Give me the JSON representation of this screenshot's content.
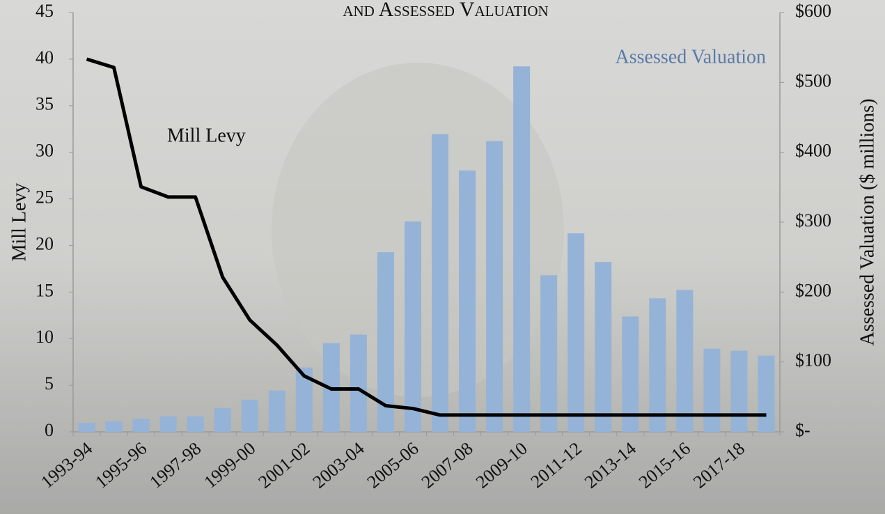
{
  "chart_data": {
    "type": "bar_line",
    "title": "and Assessed Valuation",
    "categories": [
      "1993-94",
      null,
      "1995-96",
      null,
      "1997-98",
      null,
      "1999-00",
      null,
      "2001-02",
      null,
      "2003-04",
      null,
      "2005-06",
      null,
      "2007-08",
      null,
      "2009-10",
      null,
      "2011-12",
      null,
      "2013-14",
      null,
      "2015-16",
      null,
      "2017-18",
      null
    ],
    "series": [
      {
        "name": "Assessed Valuation",
        "type": "bar",
        "axis": "y2",
        "color": "#95b3d7",
        "values": [
          13,
          15,
          19,
          22,
          22,
          34,
          46,
          59,
          92,
          127,
          139,
          257,
          301,
          426,
          374,
          416,
          523,
          224,
          284,
          243,
          165,
          191,
          203,
          119,
          116,
          109
        ]
      },
      {
        "name": "Mill Levy",
        "type": "line",
        "color": "#000000",
        "values": [
          40,
          39.1,
          26.3,
          25.2,
          25.2,
          16.6,
          12,
          9.3,
          6,
          4.6,
          4.6,
          2.8,
          2.5,
          1.8,
          1.8,
          1.8,
          1.8,
          1.8,
          1.8,
          1.8,
          1.8,
          1.8,
          1.8,
          1.8,
          1.8,
          1.8
        ]
      }
    ],
    "y_label": "Mill Levy",
    "y2_label": "Assessed Valuation ($ millions)",
    "ylim": [
      0,
      45
    ],
    "yticks": [
      0,
      5,
      10,
      15,
      20,
      25,
      30,
      35,
      40,
      45
    ],
    "y2lim": [
      0,
      600
    ],
    "y2ticks": [
      {
        "value": 0,
        "label": "$-"
      },
      {
        "value": 100,
        "label": "$100"
      },
      {
        "value": 200,
        "label": "$200"
      },
      {
        "value": 300,
        "label": "$300"
      },
      {
        "value": 400,
        "label": "$400"
      },
      {
        "value": 500,
        "label": "$500"
      },
      {
        "value": 600,
        "label": "$600"
      }
    ]
  }
}
